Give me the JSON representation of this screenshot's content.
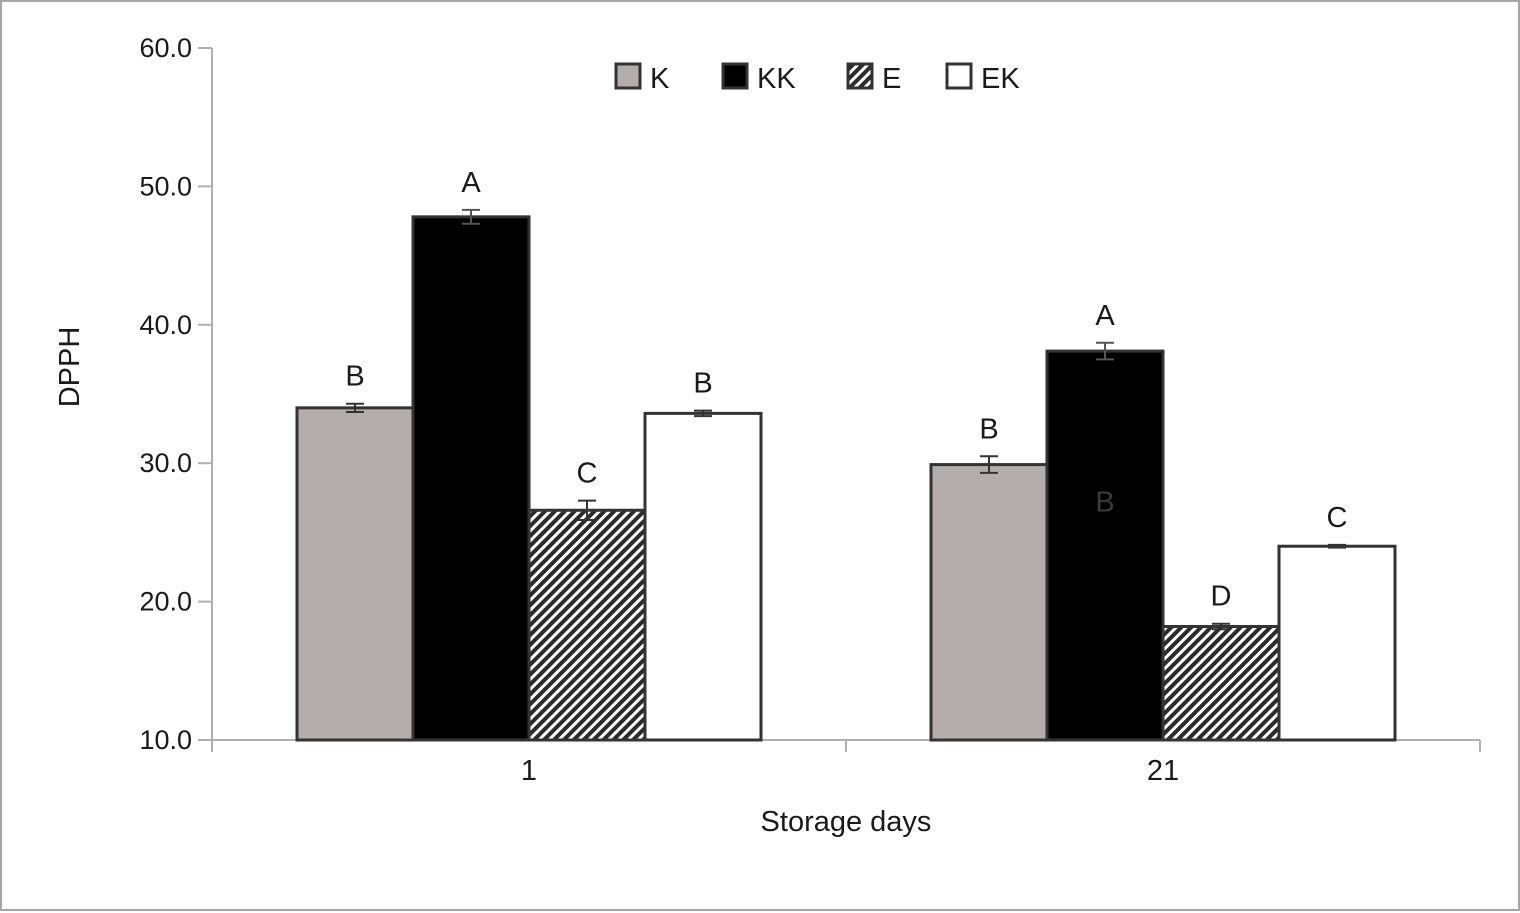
{
  "chart_data": {
    "type": "bar",
    "title": "",
    "xlabel": "Storage days",
    "ylabel": "DPPH",
    "ylim": [
      10,
      60
    ],
    "yticks": [
      "10.0",
      "20.0",
      "30.0",
      "40.0",
      "50.0",
      "60.0"
    ],
    "categories": [
      "1",
      "21"
    ],
    "legend_position": "top-center",
    "grid": false,
    "series": [
      {
        "name": "K",
        "values": [
          34.0,
          29.9
        ],
        "errors": [
          0.3,
          0.6
        ],
        "labels": [
          "B",
          "B"
        ],
        "color": "#b3aeab",
        "pattern": "solid"
      },
      {
        "name": "KK",
        "values": [
          47.8,
          38.1
        ],
        "errors": [
          0.5,
          0.6
        ],
        "labels": [
          "A",
          "A"
        ],
        "color": "#000000",
        "pattern": "solid"
      },
      {
        "name": "E",
        "values": [
          26.6,
          18.2
        ],
        "errors": [
          0.7,
          0.2
        ],
        "labels": [
          "C",
          "D"
        ],
        "color": "#2b2b2b",
        "pattern": "hatch"
      },
      {
        "name": "EK",
        "values": [
          33.6,
          24.0
        ],
        "errors": [
          0.2,
          0.1
        ],
        "labels": [
          "B",
          "C"
        ],
        "color": "#ffffff",
        "pattern": "solid"
      }
    ],
    "annotations": [
      {
        "text": "B",
        "category": "21",
        "value": 27.3
      }
    ]
  }
}
